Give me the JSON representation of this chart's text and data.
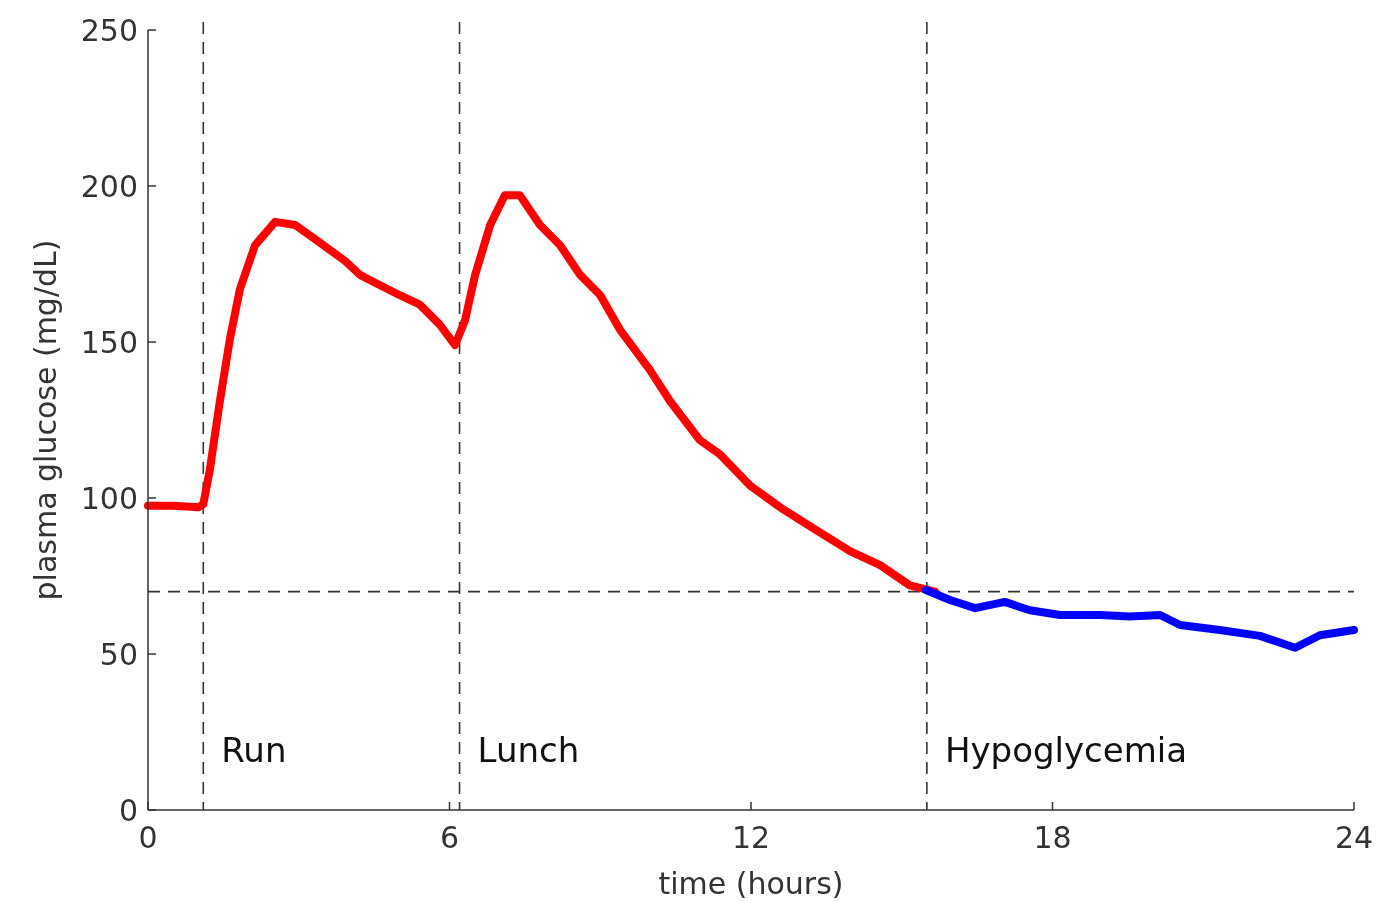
{
  "chart_data": {
    "type": "line",
    "xlabel": "time (hours)",
    "ylabel": "plasma glucose (mg/dL)",
    "xlim": [
      0,
      24
    ],
    "xticks": [
      0,
      6,
      12,
      18,
      24
    ],
    "ylim": [
      0,
      250
    ],
    "yticks": [
      0,
      50,
      100,
      150,
      200,
      250
    ],
    "grid": false,
    "line_style": "solid",
    "marker": "none",
    "series": [
      {
        "color": "#ff0000",
        "x": [
          0,
          0.5,
          1.0,
          1.1,
          1.23,
          1.43,
          1.63,
          1.83,
          2.13,
          2.53,
          2.93,
          3.32,
          3.92,
          4.22,
          4.52,
          5.01,
          5.41,
          5.81,
          6.11,
          6.31,
          6.51,
          6.81,
          7.1,
          7.4,
          7.8,
          8.2,
          8.6,
          9.0,
          9.39,
          9.99,
          10.39,
          10.98,
          11.38,
          11.98,
          12.58,
          13.17,
          13.97,
          14.57,
          15.16,
          15.66
        ],
        "values": [
          97.5,
          97.5,
          97,
          98,
          109,
          131,
          151,
          167,
          181,
          188.5,
          187.5,
          183,
          176,
          171.5,
          169,
          165,
          162,
          155.5,
          149,
          157,
          171.5,
          187.5,
          197,
          197,
          187.5,
          181,
          171.5,
          165,
          154,
          141,
          131,
          118.6,
          114,
          104,
          97,
          91,
          83,
          78.5,
          72,
          70
        ]
      },
      {
        "color": "#0000ff",
        "x": [
          15.48,
          15.96,
          16.46,
          17.05,
          17.55,
          18.15,
          18.95,
          19.54,
          20.14,
          20.54,
          21.33,
          22.13,
          22.83,
          23.32,
          24
        ],
        "values": [
          70.5,
          67.3,
          64.7,
          66.7,
          64,
          62.5,
          62.5,
          62,
          62.5,
          59.3,
          57.7,
          55.8,
          52,
          56,
          57.7
        ]
      }
    ],
    "ref_lines": [
      {
        "axis": "x",
        "value": 1.1,
        "label": "Run",
        "line_style": "dashed",
        "color": "#333333"
      },
      {
        "axis": "x",
        "value": 6.2,
        "label": "Lunch",
        "line_style": "dashed",
        "color": "#333333"
      },
      {
        "axis": "x",
        "value": 15.5,
        "label": "Hypoglycemia",
        "line_style": "dashed",
        "color": "#333333"
      },
      {
        "axis": "y",
        "value": 70,
        "line_style": "dashed",
        "color": "#333333"
      }
    ]
  }
}
